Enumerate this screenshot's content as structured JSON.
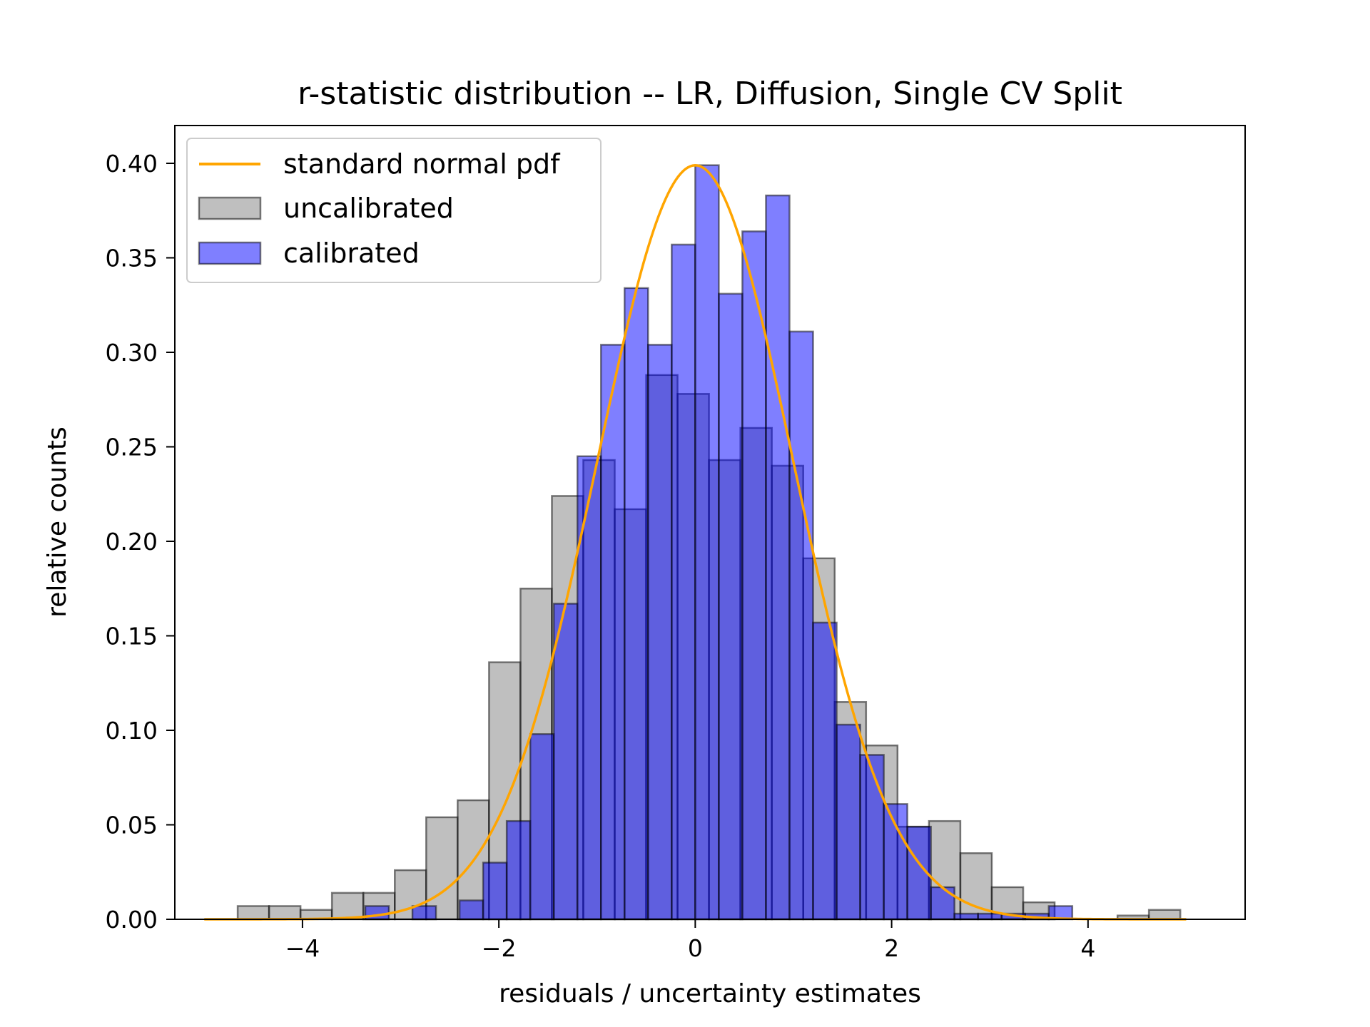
{
  "chart_data": {
    "type": "bar",
    "title": "r-statistic distribution -- LR, Diffusion, Single CV Split",
    "xlabel": "residuals / uncertainty estimates",
    "ylabel": "relative counts",
    "xlim": [
      -5.3,
      5.6
    ],
    "ylim": [
      0,
      0.42
    ],
    "xticks": [
      -4,
      -2,
      0,
      2,
      4
    ],
    "xtick_labels": [
      "−4",
      "−2",
      "0",
      "2",
      "4"
    ],
    "yticks": [
      0,
      0.05,
      0.1,
      0.15,
      0.2,
      0.25,
      0.3,
      0.35,
      0.4
    ],
    "ytick_labels": [
      "0.00",
      "0.05",
      "0.10",
      "0.15",
      "0.20",
      "0.25",
      "0.30",
      "0.35",
      "0.40"
    ],
    "grid": false,
    "legend_position": "top-left",
    "series": [
      {
        "name": "uncalibrated",
        "kind": "histogram",
        "color": "#808080",
        "bin_width": 0.32,
        "bins": [
          [
            -4.66,
            0.007
          ],
          [
            -4.34,
            0.007
          ],
          [
            -4.02,
            0.005
          ],
          [
            -3.7,
            0.014
          ],
          [
            -3.38,
            0.014
          ],
          [
            -3.06,
            0.026
          ],
          [
            -2.74,
            0.054
          ],
          [
            -2.42,
            0.063
          ],
          [
            -2.1,
            0.136
          ],
          [
            -1.78,
            0.175
          ],
          [
            -1.46,
            0.224
          ],
          [
            -1.14,
            0.243
          ],
          [
            -0.82,
            0.217
          ],
          [
            -0.5,
            0.288
          ],
          [
            -0.18,
            0.278
          ],
          [
            0.14,
            0.243
          ],
          [
            0.46,
            0.26
          ],
          [
            0.78,
            0.24
          ],
          [
            1.1,
            0.191
          ],
          [
            1.42,
            0.115
          ],
          [
            1.74,
            0.092
          ],
          [
            2.06,
            0.049
          ],
          [
            2.38,
            0.052
          ],
          [
            2.7,
            0.035
          ],
          [
            3.02,
            0.017
          ],
          [
            3.34,
            0.009
          ],
          [
            3.66,
            0.0
          ],
          [
            3.98,
            0.0
          ],
          [
            4.3,
            0.002
          ],
          [
            4.62,
            0.005
          ]
        ]
      },
      {
        "name": "calibrated",
        "kind": "histogram",
        "color": "#0000ff",
        "bin_width": 0.24,
        "bins": [
          [
            -3.36,
            0.007
          ],
          [
            -2.88,
            0.007
          ],
          [
            -2.4,
            0.01
          ],
          [
            -2.16,
            0.03
          ],
          [
            -1.92,
            0.052
          ],
          [
            -1.68,
            0.098
          ],
          [
            -1.44,
            0.167
          ],
          [
            -1.2,
            0.245
          ],
          [
            -0.96,
            0.304
          ],
          [
            -0.72,
            0.334
          ],
          [
            -0.48,
            0.304
          ],
          [
            -0.24,
            0.357
          ],
          [
            0.0,
            0.399
          ],
          [
            0.24,
            0.331
          ],
          [
            0.48,
            0.364
          ],
          [
            0.72,
            0.383
          ],
          [
            0.96,
            0.311
          ],
          [
            1.2,
            0.157
          ],
          [
            1.44,
            0.103
          ],
          [
            1.68,
            0.087
          ],
          [
            1.92,
            0.061
          ],
          [
            2.16,
            0.049
          ],
          [
            2.4,
            0.017
          ],
          [
            2.64,
            0.003
          ],
          [
            2.88,
            0.003
          ],
          [
            3.12,
            0.003
          ],
          [
            3.36,
            0.003
          ],
          [
            3.6,
            0.007
          ]
        ]
      },
      {
        "name": "standard normal pdf",
        "kind": "line",
        "color": "#ffa500",
        "function": "standard_normal_pdf",
        "x_range": [
          -5,
          5
        ]
      }
    ]
  }
}
